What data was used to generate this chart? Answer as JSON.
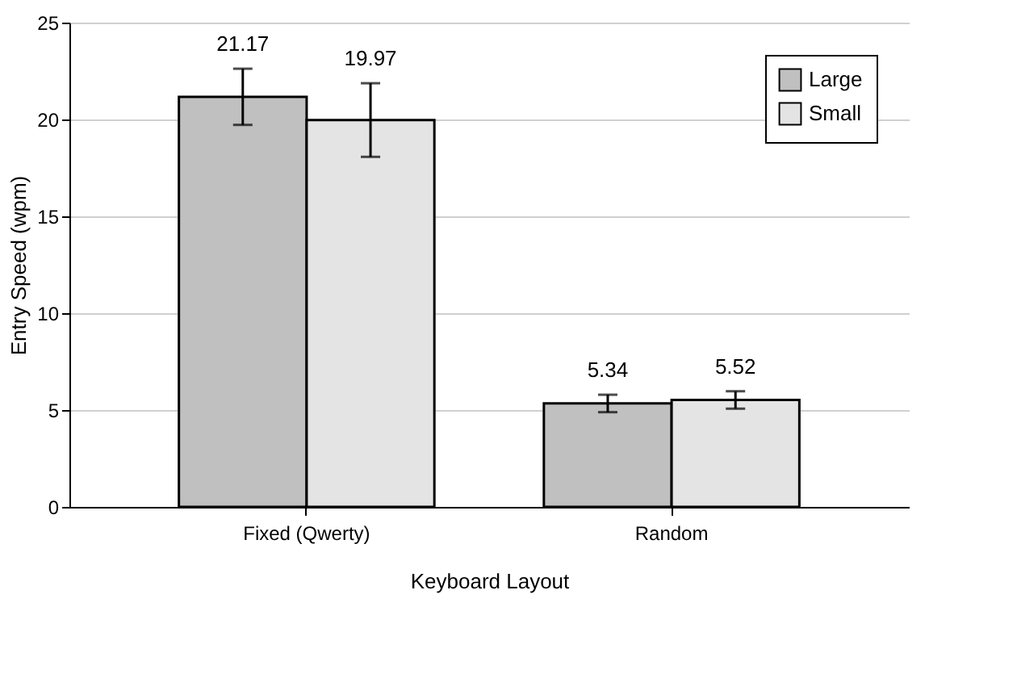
{
  "chart_data": {
    "type": "bar",
    "xlabel": "Keyboard Layout",
    "ylabel": "Entry Speed (wpm)",
    "categories": [
      "Fixed (Qwerty)",
      "Random"
    ],
    "series": [
      {
        "name": "Large",
        "color": "#c0c0c0",
        "values": [
          21.17,
          5.34
        ],
        "errors": [
          1.45,
          0.45
        ]
      },
      {
        "name": "Small",
        "color": "#e4e4e4",
        "values": [
          19.97,
          5.52
        ],
        "errors": [
          1.9,
          0.45
        ]
      }
    ],
    "ylim": [
      0,
      25
    ],
    "yticks": [
      0,
      5,
      10,
      15,
      20,
      25
    ],
    "grid": "y",
    "legend": "top right",
    "data_labels": true
  }
}
